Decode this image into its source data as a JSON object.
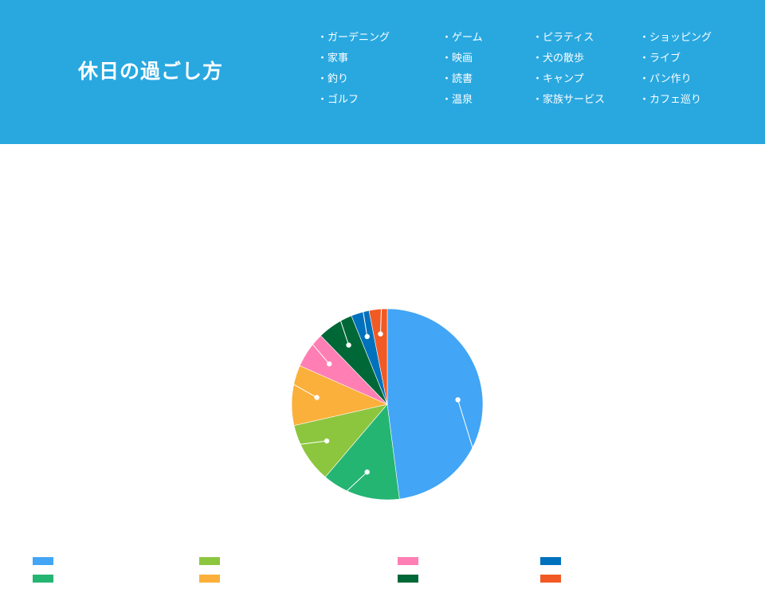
{
  "header": {
    "title": "休日の過ごし方",
    "background": "#29a8e0",
    "tags": [
      [
        "・ガーデニング",
        "・ゲーム",
        "・ピラティス",
        "・ショッピング"
      ],
      [
        "・家事",
        "・映画",
        "・犬の散歩",
        "・ライブ"
      ],
      [
        "・釣り",
        "・読書",
        "・キャンプ",
        "・パン作り"
      ],
      [
        "・ゴルフ",
        "・温泉",
        "・家族サービス",
        "・カフェ巡り"
      ]
    ]
  },
  "chart_data": {
    "type": "pie",
    "title": "",
    "series": [
      {
        "value": 47,
        "color": "#42a5f5"
      },
      {
        "value": 13,
        "color": "#24b573"
      },
      {
        "value": 10,
        "color": "#8cc63f"
      },
      {
        "value": 10,
        "color": "#fbb03b"
      },
      {
        "value": 6,
        "color": "#ff7eb3"
      },
      {
        "value": 6,
        "color": "#006837"
      },
      {
        "value": 3,
        "color": "#0071bc"
      },
      {
        "value": 3,
        "color": "#f15a24"
      }
    ],
    "legend": {
      "placement": "bottom",
      "entries": [
        "",
        "",
        "",
        "",
        "",
        "",
        "",
        ""
      ]
    }
  }
}
